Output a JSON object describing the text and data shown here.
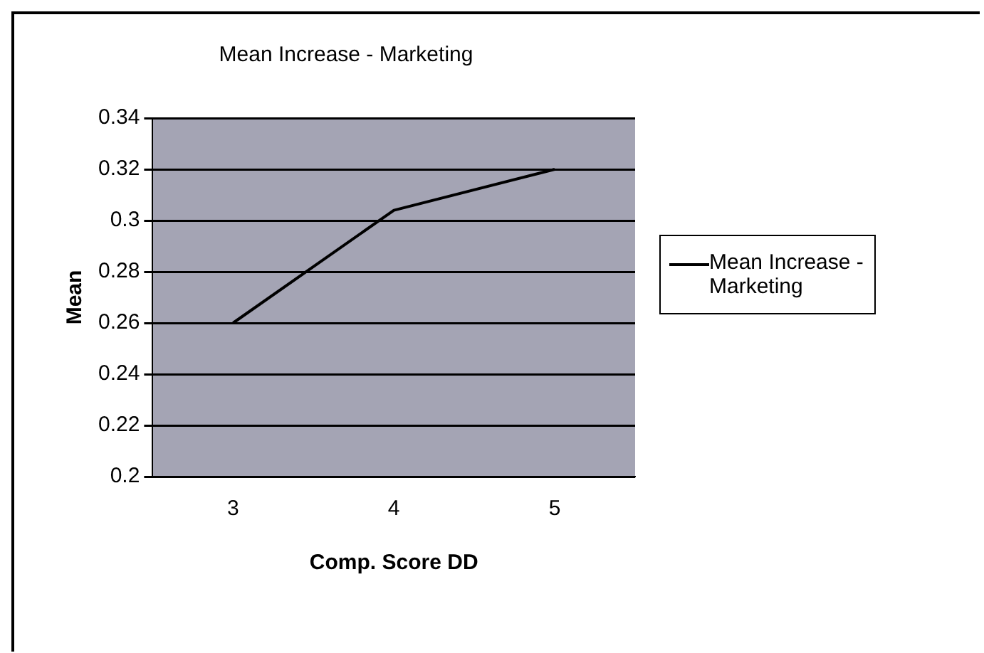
{
  "chart_data": {
    "type": "line",
    "title": "Mean Increase - Marketing",
    "xlabel": "Comp. Score DD",
    "ylabel": "Mean",
    "categories": [
      "3",
      "4",
      "5"
    ],
    "series": [
      {
        "name": "Mean Increase - Marketing",
        "color": "#000000",
        "values": [
          0.26,
          0.304,
          0.32
        ]
      }
    ],
    "ylim": [
      0.2,
      0.34
    ],
    "yticks": [
      0.2,
      0.22,
      0.24,
      0.26,
      0.28,
      0.3,
      0.32,
      0.34
    ],
    "grid": "y",
    "legend": "right",
    "marker": "none"
  }
}
